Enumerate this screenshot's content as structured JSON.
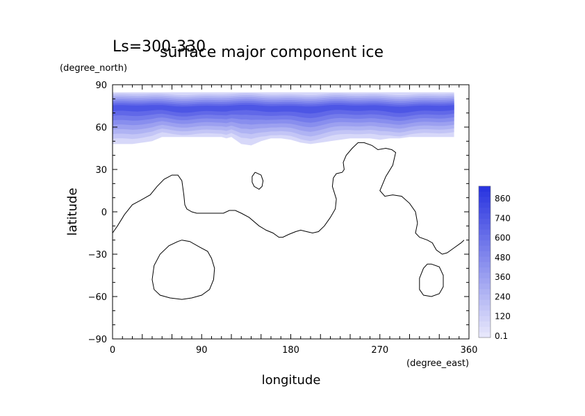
{
  "chart_data": {
    "type": "heatmap",
    "title": "surface major component ice",
    "subtitle": "Ls=300-330",
    "xlabel": "longitude",
    "ylabel": "latitude",
    "xunits": "(degree_east)",
    "yunits": "(degree_north)",
    "xlim": [
      0,
      360
    ],
    "ylim": [
      -90,
      90
    ],
    "x_ticks": [
      0,
      90,
      180,
      270,
      360
    ],
    "y_ticks": [
      90,
      60,
      30,
      0,
      -30,
      -60,
      -90
    ],
    "colorbar": {
      "labels": [
        "0.1",
        "120",
        "240",
        "360",
        "480",
        "600",
        "740",
        "860"
      ],
      "low_color": "#e6e6fb",
      "high_color": "#2a35e0"
    },
    "ice_cap": {
      "top_lat": 86,
      "max_lat": 74,
      "max_value": 930,
      "edge_lon": [
        0,
        20,
        40,
        50,
        60,
        80,
        100,
        110,
        115,
        120,
        130,
        140,
        150,
        160,
        170,
        180,
        190,
        200,
        210,
        220,
        230,
        240,
        250,
        260,
        270,
        280,
        290,
        300,
        320,
        340,
        360
      ],
      "edge_lat": [
        48,
        48,
        50,
        53,
        53,
        53,
        53,
        53,
        52,
        53,
        48,
        47,
        50,
        52,
        52,
        51,
        49,
        48,
        49,
        50,
        51,
        52,
        52,
        52,
        51,
        52,
        52,
        53,
        53,
        53,
        53
      ]
    },
    "contours": [
      {
        "lon": [
          0,
          5,
          12,
          20,
          28,
          38,
          45,
          52,
          60,
          66,
          70,
          72,
          73,
          75,
          80,
          85,
          90,
          100,
          108,
          112,
          118,
          124,
          130,
          138,
          148,
          155,
          162,
          168,
          172,
          178,
          185,
          190,
          196,
          202,
          208,
          214,
          220,
          225,
          226,
          222,
          223,
          226,
          232,
          234,
          233,
          236,
          242,
          248,
          254,
          262,
          268,
          276,
          282,
          286,
          283,
          276,
          270,
          275,
          283,
          292,
          300,
          306,
          308,
          306,
          310,
          318,
          323,
          327,
          333,
          338,
          344,
          352,
          355
        ],
        "lat": [
          -15,
          -10,
          -2,
          5,
          8,
          12,
          18,
          23,
          26,
          26,
          22,
          12,
          5,
          2,
          0,
          -1,
          -1,
          -1,
          -1,
          -1,
          1,
          1,
          -1,
          -4,
          -10,
          -13,
          -15,
          -18,
          -18,
          -16,
          -14,
          -13,
          -14,
          -15,
          -14,
          -10,
          -4,
          2,
          9,
          18,
          24,
          27,
          28,
          30,
          35,
          40,
          45,
          49,
          49,
          47,
          44,
          45,
          44,
          42,
          33,
          25,
          15,
          11,
          12,
          11,
          6,
          0,
          -8,
          -15,
          -18,
          -20,
          -22,
          -27,
          -30,
          -29,
          -26,
          -22,
          -20
        ]
      },
      {
        "lon": [
          70,
          78,
          88,
          96,
          100,
          103,
          102,
          98,
          90,
          80,
          70,
          58,
          48,
          42,
          40,
          42,
          48,
          57,
          66,
          70
        ],
        "lat": [
          -20,
          -21,
          -25,
          -28,
          -33,
          -40,
          -48,
          -55,
          -59,
          -61,
          -62,
          -61,
          -59,
          -55,
          -48,
          -38,
          -30,
          -24,
          -21,
          -20
        ]
      },
      {
        "lon": [
          322,
          330,
          334,
          334,
          330,
          322,
          314,
          310,
          310,
          314,
          318,
          322
        ],
        "lat": [
          -37,
          -39,
          -45,
          -53,
          -58,
          -60,
          -59,
          -55,
          -47,
          -40,
          -37,
          -37
        ]
      },
      {
        "lon": [
          144,
          150,
          152,
          151,
          148,
          143,
          141,
          141,
          144
        ],
        "lat": [
          28,
          26,
          22,
          18,
          16,
          18,
          21,
          25,
          28
        ]
      }
    ]
  }
}
